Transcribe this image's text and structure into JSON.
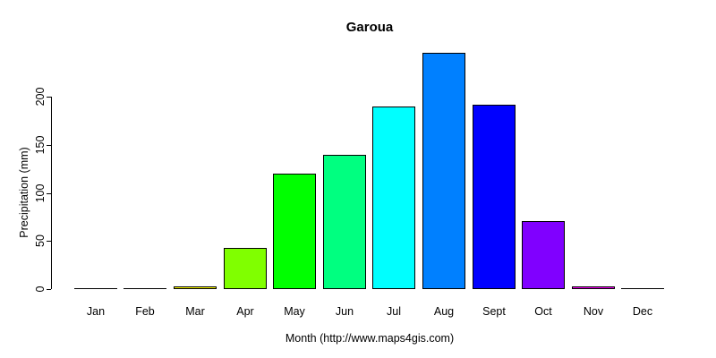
{
  "chart_data": {
    "type": "bar",
    "title": "Garoua",
    "categories": [
      "Jan",
      "Feb",
      "Mar",
      "Apr",
      "May",
      "Jun",
      "Jul",
      "Aug",
      "Sept",
      "Oct",
      "Nov",
      "Dec"
    ],
    "values": [
      0,
      0,
      3,
      43,
      120,
      140,
      190,
      246,
      192,
      71,
      3,
      0
    ],
    "bar_colors": [
      "#FF0000",
      "#FF8000",
      "#FFFF00",
      "#80FF00",
      "#00FF00",
      "#00FF80",
      "#00FFFF",
      "#0080FF",
      "#0000FF",
      "#8000FF",
      "#FF00FF",
      "#FF0080"
    ],
    "bar_border_color": "#000000",
    "xlabel": "Month (http://www.maps4gis.com)",
    "ylabel": "Precipitation (mm)",
    "yticks": [
      0,
      50,
      100,
      150,
      200
    ],
    "ylim": [
      0,
      250
    ],
    "grid": false,
    "legend": "none",
    "background_color": "#FFFFFF",
    "text_color": "#000000"
  }
}
